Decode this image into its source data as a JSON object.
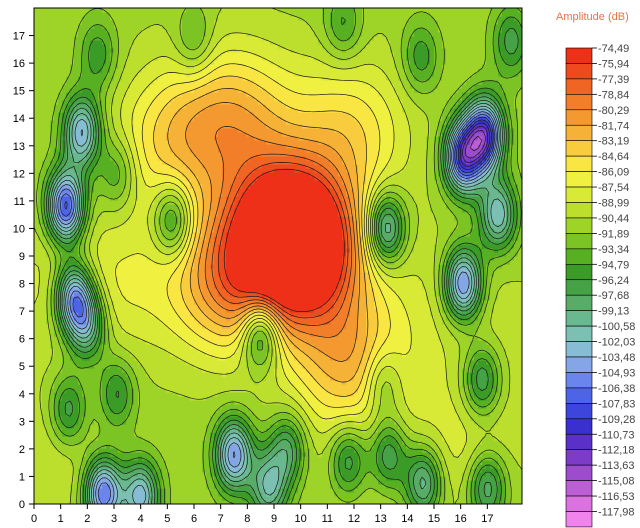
{
  "chart_data": {
    "type": "heatmap",
    "subtype": "filled-contour",
    "title": "",
    "xlabel": "",
    "ylabel": "",
    "xlim": [
      0,
      18.3
    ],
    "ylim": [
      0,
      18.0
    ],
    "x_ticks": [
      "0",
      "1",
      "2",
      "3",
      "4",
      "5",
      "6",
      "7",
      "8",
      "9",
      "10",
      "11",
      "12",
      "13",
      "14",
      "15",
      "16",
      "17"
    ],
    "y_ticks": [
      "0",
      "1",
      "2",
      "3",
      "4",
      "5",
      "6",
      "7",
      "8",
      "9",
      "10",
      "11",
      "12",
      "13",
      "14",
      "15",
      "16",
      "17"
    ],
    "grid": false,
    "legend": {
      "title": "Amplitude (dB)",
      "position": "right",
      "levels": [
        "-74,49",
        "-75,94",
        "-77,39",
        "-78,84",
        "-80,29",
        "-81,74",
        "-83,19",
        "-84,64",
        "-86,09",
        "-87,54",
        "-88,99",
        "-90,44",
        "-91,89",
        "-93,34",
        "-94,79",
        "-96,24",
        "-97,68",
        "-99,13",
        "-100,58",
        "-102,03",
        "-103,48",
        "-104,93",
        "-106,38",
        "-107,83",
        "-109,28",
        "-110,73",
        "-112,18",
        "-113,63",
        "-115,08",
        "-116,53",
        "-117,98"
      ],
      "colors": [
        "#ee3018",
        "#ef4a1e",
        "#f06424",
        "#f27e2a",
        "#f49830",
        "#f6b236",
        "#f8cc3c",
        "#fae642",
        "#f0f040",
        "#d8ea36",
        "#bcdf2e",
        "#9ed428",
        "#7cc424",
        "#56b022",
        "#3a9c26",
        "#46a246",
        "#58ac68",
        "#6ab890",
        "#7cc0b4",
        "#86bcd4",
        "#84a6e6",
        "#6a86ec",
        "#4e64e6",
        "#3c46dc",
        "#3a30d0",
        "#5a30c8",
        "#7c3cc8",
        "#9c4ccc",
        "#bc5ed4",
        "#da72e0",
        "#f084ec"
      ]
    },
    "peaks": [
      {
        "x": 9.4,
        "y": 10.0,
        "amplitude": -74.5
      },
      {
        "x": 10.2,
        "y": 9.0,
        "amplitude": -78.0
      },
      {
        "x": 7.2,
        "y": 8.0,
        "amplitude": -82.0
      },
      {
        "x": 11.8,
        "y": 5.2,
        "amplitude": -83.0
      },
      {
        "x": 5.2,
        "y": 13.2,
        "amplitude": -85.0
      },
      {
        "x": 7.6,
        "y": 14.0,
        "amplitude": -83.5
      },
      {
        "x": 11.8,
        "y": 13.5,
        "amplitude": -85.0
      },
      {
        "x": 3.2,
        "y": 8.0,
        "amplitude": -88.0
      },
      {
        "x": 0.3,
        "y": 8.0,
        "amplitude": -89.0
      },
      {
        "x": 15.2,
        "y": 7.5,
        "amplitude": -89.5
      },
      {
        "x": 17.6,
        "y": 5.8,
        "amplitude": -90.0
      },
      {
        "x": 16.0,
        "y": 2.2,
        "amplitude": -88.5
      },
      {
        "x": 0.9,
        "y": 1.8,
        "amplitude": -89.0
      },
      {
        "x": 12.5,
        "y": 1.0,
        "amplitude": -90.0
      }
    ],
    "troughs": [
      {
        "x": 1.2,
        "y": 10.8,
        "amplitude": -109.0
      },
      {
        "x": 1.5,
        "y": 7.5,
        "amplitude": -106.0
      },
      {
        "x": 1.8,
        "y": 13.5,
        "amplitude": -104.0
      },
      {
        "x": 2.0,
        "y": 6.5,
        "amplitude": -101.0
      },
      {
        "x": 16.1,
        "y": 12.6,
        "amplitude": -109.0
      },
      {
        "x": 16.9,
        "y": 13.4,
        "amplitude": -110.5
      },
      {
        "x": 16.1,
        "y": 8.0,
        "amplitude": -106.5
      },
      {
        "x": 17.4,
        "y": 10.5,
        "amplitude": -102.0
      },
      {
        "x": 16.8,
        "y": 4.5,
        "amplitude": -99.0
      },
      {
        "x": 13.2,
        "y": 10.0,
        "amplitude": -103.0
      },
      {
        "x": 7.5,
        "y": 1.8,
        "amplitude": -105.0
      },
      {
        "x": 2.6,
        "y": 0.4,
        "amplitude": -107.0
      },
      {
        "x": 4.0,
        "y": 0.3,
        "amplitude": -103.0
      },
      {
        "x": 8.8,
        "y": 0.6,
        "amplitude": -100.5
      },
      {
        "x": 9.5,
        "y": 2.0,
        "amplitude": -98.5
      },
      {
        "x": 11.8,
        "y": 1.6,
        "amplitude": -98.5
      },
      {
        "x": 13.3,
        "y": 1.8,
        "amplitude": -99.0
      },
      {
        "x": 14.6,
        "y": 0.8,
        "amplitude": -101.0
      },
      {
        "x": 17.0,
        "y": 0.6,
        "amplitude": -99.5
      },
      {
        "x": 5.2,
        "y": 10.3,
        "amplitude": -99.0
      },
      {
        "x": 8.5,
        "y": 6.2,
        "amplitude": -101.0
      },
      {
        "x": 3.1,
        "y": 4.0,
        "amplitude": -97.0
      },
      {
        "x": 3.1,
        "y": 12.0,
        "amplitude": -96.0
      },
      {
        "x": 1.3,
        "y": 3.4,
        "amplitude": -98.0
      },
      {
        "x": 2.4,
        "y": 16.3,
        "amplitude": -96.0
      },
      {
        "x": 13.1,
        "y": 4.4,
        "amplitude": -96.0
      },
      {
        "x": 6.0,
        "y": 16.8,
        "amplitude": -95.0
      },
      {
        "x": 11.6,
        "y": 17.4,
        "amplitude": -95.5
      },
      {
        "x": 14.5,
        "y": 16.2,
        "amplitude": -96.0
      },
      {
        "x": 17.9,
        "y": 16.8,
        "amplitude": -97.0
      }
    ]
  }
}
